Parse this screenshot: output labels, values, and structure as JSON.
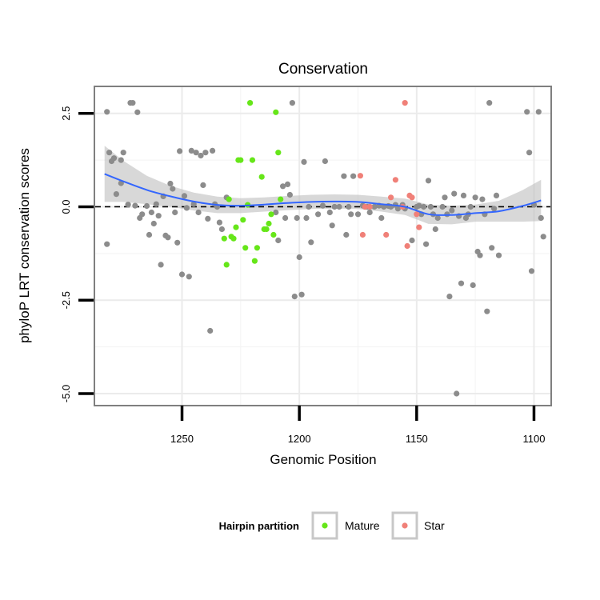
{
  "chart_data": {
    "type": "scatter",
    "title": "Conservation",
    "xlabel": "Genomic Position",
    "ylabel": "phyloP LRT conservation scores",
    "x_reversed": true,
    "xlim": [
      1287,
      1093
    ],
    "ylim": [
      -5.3,
      3.2
    ],
    "x_ticks": [
      1250,
      1200,
      1150,
      1100
    ],
    "y_ticks": [
      -5.0,
      -2.5,
      0.0,
      2.5
    ],
    "x_tick_labels": [
      "1250",
      "1200",
      "1150",
      "1100"
    ],
    "y_tick_labels": [
      "-5.0",
      "-2.5",
      "0.0",
      "2.5"
    ],
    "grid": true,
    "reference_line": {
      "y": 0,
      "style": "dashed",
      "color": "#000000"
    },
    "legend": {
      "title": "Hairpin partition",
      "position": "bottom",
      "entries": [
        {
          "label": "Mature",
          "color": "#66E619"
        },
        {
          "label": "Star",
          "color": "#F08078"
        }
      ]
    },
    "colors": {
      "other": "#8C8C8C",
      "mature": "#66E619",
      "star": "#F08078",
      "smooth": "#3366FF",
      "band": "#BEBEBE"
    },
    "series": [
      {
        "group": "other",
        "points": [
          [
            1282,
            2.54
          ],
          [
            1281,
            1.45
          ],
          [
            1280,
            1.22
          ],
          [
            1279,
            1.3
          ],
          [
            1278,
            0.34
          ],
          [
            1276,
            1.25
          ],
          [
            1276,
            0.63
          ],
          [
            1275,
            1.45
          ],
          [
            1273,
            0.06
          ],
          [
            1272,
            2.78
          ],
          [
            1271,
            2.78
          ],
          [
            1270,
            0.03
          ],
          [
            1269,
            2.53
          ],
          [
            1268,
            -0.3
          ],
          [
            1267,
            -0.2
          ],
          [
            1265,
            0.02
          ],
          [
            1264,
            -0.75
          ],
          [
            1263,
            -0.15
          ],
          [
            1262,
            -0.45
          ],
          [
            1261,
            0.07
          ],
          [
            1260,
            -0.24
          ],
          [
            1259,
            -1.55
          ],
          [
            1258,
            0.28
          ],
          [
            1257,
            -0.77
          ],
          [
            1256,
            -0.82
          ],
          [
            1255,
            0.62
          ],
          [
            1254,
            0.48
          ],
          [
            1253,
            -0.15
          ],
          [
            1252,
            -0.96
          ],
          [
            1251,
            1.49
          ],
          [
            1250,
            -1.81
          ],
          [
            1249,
            0.29
          ],
          [
            1248,
            -0.03
          ],
          [
            1247,
            -1.87
          ],
          [
            1246,
            1.5
          ],
          [
            1245,
            0.07
          ],
          [
            1244,
            1.45
          ],
          [
            1243,
            -0.15
          ],
          [
            1242,
            1.37
          ],
          [
            1241,
            0.58
          ],
          [
            1240,
            1.45
          ],
          [
            1239,
            -0.32
          ],
          [
            1238,
            -3.32
          ],
          [
            1237,
            1.5
          ],
          [
            1236,
            0.07
          ],
          [
            1235,
            0.0
          ],
          [
            1234,
            -0.42
          ],
          [
            1233,
            -0.6
          ],
          [
            1282,
            -1.0
          ],
          [
            1231,
            0.25
          ],
          [
            1210,
            -0.15
          ],
          [
            1209,
            -0.9
          ],
          [
            1207,
            0.55
          ],
          [
            1206,
            -0.3
          ],
          [
            1205,
            0.6
          ],
          [
            1204,
            0.32
          ],
          [
            1203,
            2.78
          ],
          [
            1202,
            -2.4
          ],
          [
            1201,
            -0.3
          ],
          [
            1200,
            -1.35
          ],
          [
            1199,
            -2.35
          ],
          [
            1198,
            1.2
          ],
          [
            1197,
            -0.3
          ],
          [
            1196,
            0.0
          ],
          [
            1195,
            -0.95
          ],
          [
            1192,
            -0.2
          ],
          [
            1190,
            0.03
          ],
          [
            1189,
            1.22
          ],
          [
            1187,
            -0.15
          ],
          [
            1186,
            -0.5
          ],
          [
            1185,
            0.0
          ],
          [
            1183,
            0.0
          ],
          [
            1181,
            0.82
          ],
          [
            1180,
            -0.75
          ],
          [
            1179,
            0.0
          ],
          [
            1178,
            -0.2
          ],
          [
            1177,
            0.82
          ],
          [
            1175,
            -0.2
          ],
          [
            1173,
            0.03
          ],
          [
            1172,
            0.0
          ],
          [
            1171,
            0.0
          ],
          [
            1170,
            -0.15
          ],
          [
            1168,
            0.0
          ],
          [
            1166,
            0.03
          ],
          [
            1165,
            -0.3
          ],
          [
            1164,
            0.0
          ],
          [
            1162,
            0.02
          ],
          [
            1161,
            0.0
          ],
          [
            1159,
            0.05
          ],
          [
            1158,
            -0.05
          ],
          [
            1156,
            0.05
          ],
          [
            1155,
            -0.05
          ],
          [
            1152,
            -0.9
          ],
          [
            1150,
            0.0
          ],
          [
            1149,
            0.03
          ],
          [
            1148,
            -0.2
          ],
          [
            1147,
            0.0
          ],
          [
            1146,
            -1.0
          ],
          [
            1145,
            0.7
          ],
          [
            1144,
            0.0
          ],
          [
            1143,
            -0.2
          ],
          [
            1142,
            -0.6
          ],
          [
            1141,
            -0.3
          ],
          [
            1139,
            0.0
          ],
          [
            1138,
            0.25
          ],
          [
            1137,
            -0.2
          ],
          [
            1136,
            -2.4
          ],
          [
            1135,
            -0.1
          ],
          [
            1134,
            0.35
          ],
          [
            1133,
            -5.0
          ],
          [
            1132,
            -0.25
          ],
          [
            1131,
            -2.05
          ],
          [
            1130,
            0.3
          ],
          [
            1129,
            -0.3
          ],
          [
            1128,
            -0.2
          ],
          [
            1127,
            0.0
          ],
          [
            1126,
            -2.1
          ],
          [
            1125,
            0.25
          ],
          [
            1124,
            -1.2
          ],
          [
            1123,
            -1.3
          ],
          [
            1122,
            0.2
          ],
          [
            1121,
            -0.2
          ],
          [
            1120,
            -2.8
          ],
          [
            1119,
            2.78
          ],
          [
            1118,
            -1.1
          ],
          [
            1117,
            -0.05
          ],
          [
            1116,
            0.3
          ],
          [
            1115,
            -1.3
          ],
          [
            1103,
            2.54
          ],
          [
            1102,
            1.45
          ],
          [
            1101,
            -1.72
          ],
          [
            1100,
            0.05
          ],
          [
            1098,
            2.54
          ],
          [
            1097,
            -0.3
          ],
          [
            1096,
            -0.8
          ]
        ]
      },
      {
        "group": "mature",
        "points": [
          [
            1232,
            -0.85
          ],
          [
            1231,
            -1.55
          ],
          [
            1230,
            0.2
          ],
          [
            1229,
            -0.8
          ],
          [
            1228,
            -0.85
          ],
          [
            1227,
            -0.55
          ],
          [
            1226,
            1.25
          ],
          [
            1225,
            1.25
          ],
          [
            1224,
            -0.35
          ],
          [
            1223,
            -1.1
          ],
          [
            1222,
            0.05
          ],
          [
            1221,
            2.78
          ],
          [
            1220,
            1.25
          ],
          [
            1219,
            -1.45
          ],
          [
            1218,
            -1.1
          ],
          [
            1216,
            0.8
          ],
          [
            1215,
            -0.6
          ],
          [
            1214,
            -0.6
          ],
          [
            1213,
            -0.45
          ],
          [
            1212,
            -0.2
          ],
          [
            1211,
            -0.75
          ],
          [
            1210,
            2.53
          ],
          [
            1209,
            1.45
          ],
          [
            1208,
            0.2
          ]
        ]
      },
      {
        "group": "star",
        "points": [
          [
            1174,
            0.83
          ],
          [
            1173,
            -0.75
          ],
          [
            1172,
            0.0
          ],
          [
            1170,
            0.0
          ],
          [
            1163,
            -0.75
          ],
          [
            1161,
            0.25
          ],
          [
            1159,
            0.72
          ],
          [
            1156,
            0.0
          ],
          [
            1155,
            2.78
          ],
          [
            1154,
            -1.05
          ],
          [
            1153,
            0.3
          ],
          [
            1152,
            0.25
          ],
          [
            1150,
            -0.2
          ],
          [
            1149,
            -0.55
          ]
        ]
      }
    ],
    "smooth": {
      "x": [
        1283,
        1275,
        1265,
        1255,
        1245,
        1235,
        1225,
        1215,
        1205,
        1195,
        1185,
        1175,
        1165,
        1155,
        1145,
        1135,
        1125,
        1115,
        1105,
        1097
      ],
      "y": [
        0.88,
        0.68,
        0.45,
        0.28,
        0.14,
        0.05,
        0.03,
        0.06,
        0.1,
        0.13,
        0.14,
        0.13,
        0.07,
        0.0,
        -0.2,
        -0.22,
        -0.17,
        -0.12,
        0.02,
        0.17
      ],
      "se": [
        0.75,
        0.55,
        0.38,
        0.28,
        0.24,
        0.22,
        0.2,
        0.19,
        0.19,
        0.19,
        0.19,
        0.19,
        0.2,
        0.22,
        0.26,
        0.25,
        0.23,
        0.28,
        0.42,
        0.55
      ]
    }
  }
}
